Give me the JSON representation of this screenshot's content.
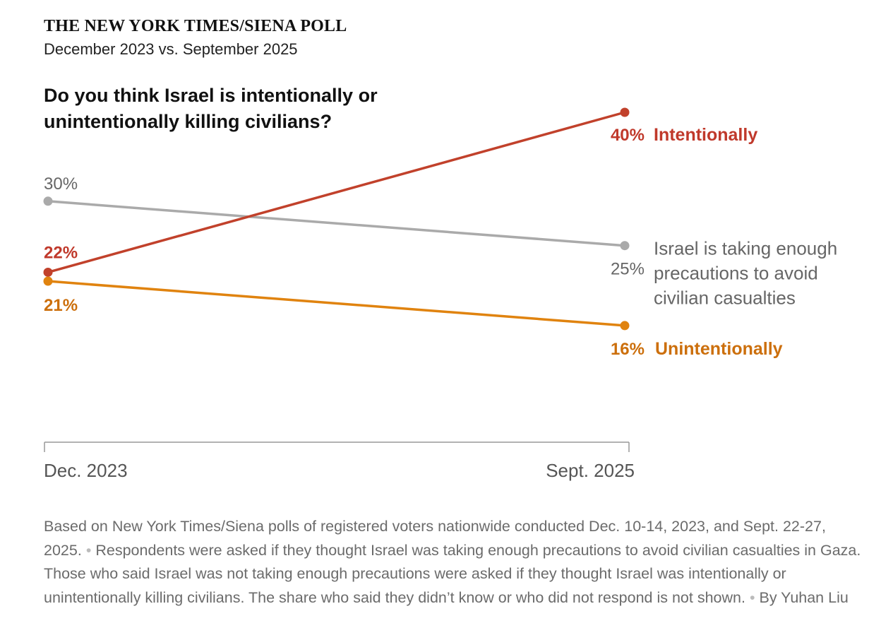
{
  "header": {
    "kicker": "THE NEW YORK TIMES/SIENA POLL",
    "subtitle": "December 2023 vs. September 2025"
  },
  "chart_data": {
    "type": "line",
    "title": "Do you think Israel is intentionally or unintentionally killing civilians?",
    "categories": [
      "Dec. 2023",
      "Sept. 2025"
    ],
    "series": [
      {
        "name": "Israel is taking enough precautions to avoid civilian casualties",
        "label_lines": [
          "Israel is taking enough",
          "precautions to avoid",
          "civilian casualties"
        ],
        "values": [
          30,
          25
        ],
        "value_labels": [
          "30%",
          "25%"
        ],
        "color": "#aaaaaa",
        "label_color": "#666666",
        "bold": false
      },
      {
        "name": "Intentionally",
        "label_lines": [
          "Intentionally"
        ],
        "values": [
          22,
          40
        ],
        "value_labels": [
          "22%",
          "40%"
        ],
        "color": "#c1412b",
        "label_color": "#c0392b",
        "bold": true
      },
      {
        "name": "Unintentionally",
        "label_lines": [
          "Unintentionally"
        ],
        "values": [
          21,
          16
        ],
        "value_labels": [
          "21%",
          "16%"
        ],
        "color": "#e0830f",
        "label_color": "#cc6f0c",
        "bold": true
      }
    ],
    "xlabel": "",
    "ylabel": "",
    "grid": false
  },
  "note": {
    "text1": "Based on New York Times/Siena polls of registered voters nationwide conducted Dec. 10-14, 2023, and Sept. 22-27, 2025.",
    "text2": "Respondents were asked if they thought Israel was taking enough precautions to avoid civilian casualties in Gaza. Those who said Israel was not taking enough precautions were asked if they thought Israel was intentionally or unintentionally killing civilians. The share who said they didn’t know or who did not respond is not shown.",
    "byline": "By Yuhan Liu",
    "separator": "•"
  }
}
